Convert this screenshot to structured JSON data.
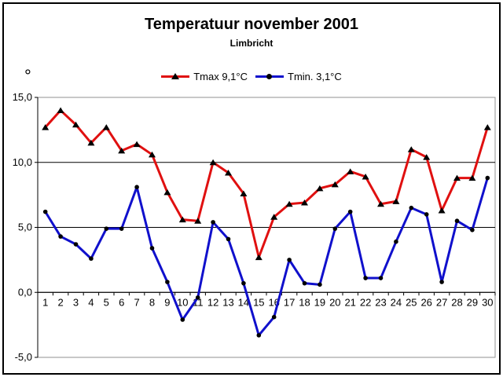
{
  "window": {
    "background": "#ffffff",
    "outer_border_color": "#000000"
  },
  "chart_data": {
    "type": "line",
    "title": "Temperatuur november 2001",
    "subtitle": "Limbricht",
    "y_axis_unit": "°",
    "xlabel": "",
    "ylabel": "",
    "ylim": [
      -5,
      15
    ],
    "grid": "horizontal-major",
    "legend_position": "top-center",
    "gridline_color": "#000000",
    "plot_border_color": "#909090",
    "axis_color": "#000000",
    "marker_color": "#000000",
    "y_ticks": [
      {
        "label": "15,0",
        "value": 15
      },
      {
        "label": "10,0",
        "value": 10
      },
      {
        "label": "5,0",
        "value": 5
      },
      {
        "label": "0,0",
        "value": 0
      },
      {
        "label": "-5,0",
        "value": -5
      }
    ],
    "categories": [
      "1",
      "2",
      "3",
      "4",
      "5",
      "6",
      "7",
      "8",
      "9",
      "10",
      "11",
      "12",
      "13",
      "14",
      "15",
      "16",
      "17",
      "18",
      "19",
      "20",
      "21",
      "22",
      "23",
      "24",
      "25",
      "26",
      "27",
      "28",
      "29",
      "30"
    ],
    "series": [
      {
        "name": "Tmax 9,1°C",
        "color": "#e01010",
        "marker": "triangle",
        "values": [
          12.7,
          14.0,
          12.9,
          11.5,
          12.7,
          10.9,
          11.4,
          10.6,
          7.7,
          5.6,
          5.5,
          10.0,
          9.2,
          7.6,
          2.7,
          5.8,
          6.8,
          6.9,
          8.0,
          8.3,
          9.3,
          8.9,
          6.8,
          7.0,
          11.0,
          10.4,
          6.3,
          8.8,
          8.8,
          12.7
        ]
      },
      {
        "name": "Tmin. 3,1°C",
        "color": "#1010cc",
        "marker": "circle",
        "values": [
          6.2,
          4.3,
          3.7,
          2.6,
          4.9,
          4.9,
          8.1,
          3.4,
          0.8,
          -2.1,
          -0.4,
          5.4,
          4.1,
          0.7,
          -3.3,
          -1.9,
          2.5,
          0.7,
          0.6,
          4.9,
          6.2,
          1.1,
          1.1,
          3.9,
          6.5,
          6.0,
          0.8,
          5.5,
          4.8,
          8.8
        ]
      }
    ]
  }
}
